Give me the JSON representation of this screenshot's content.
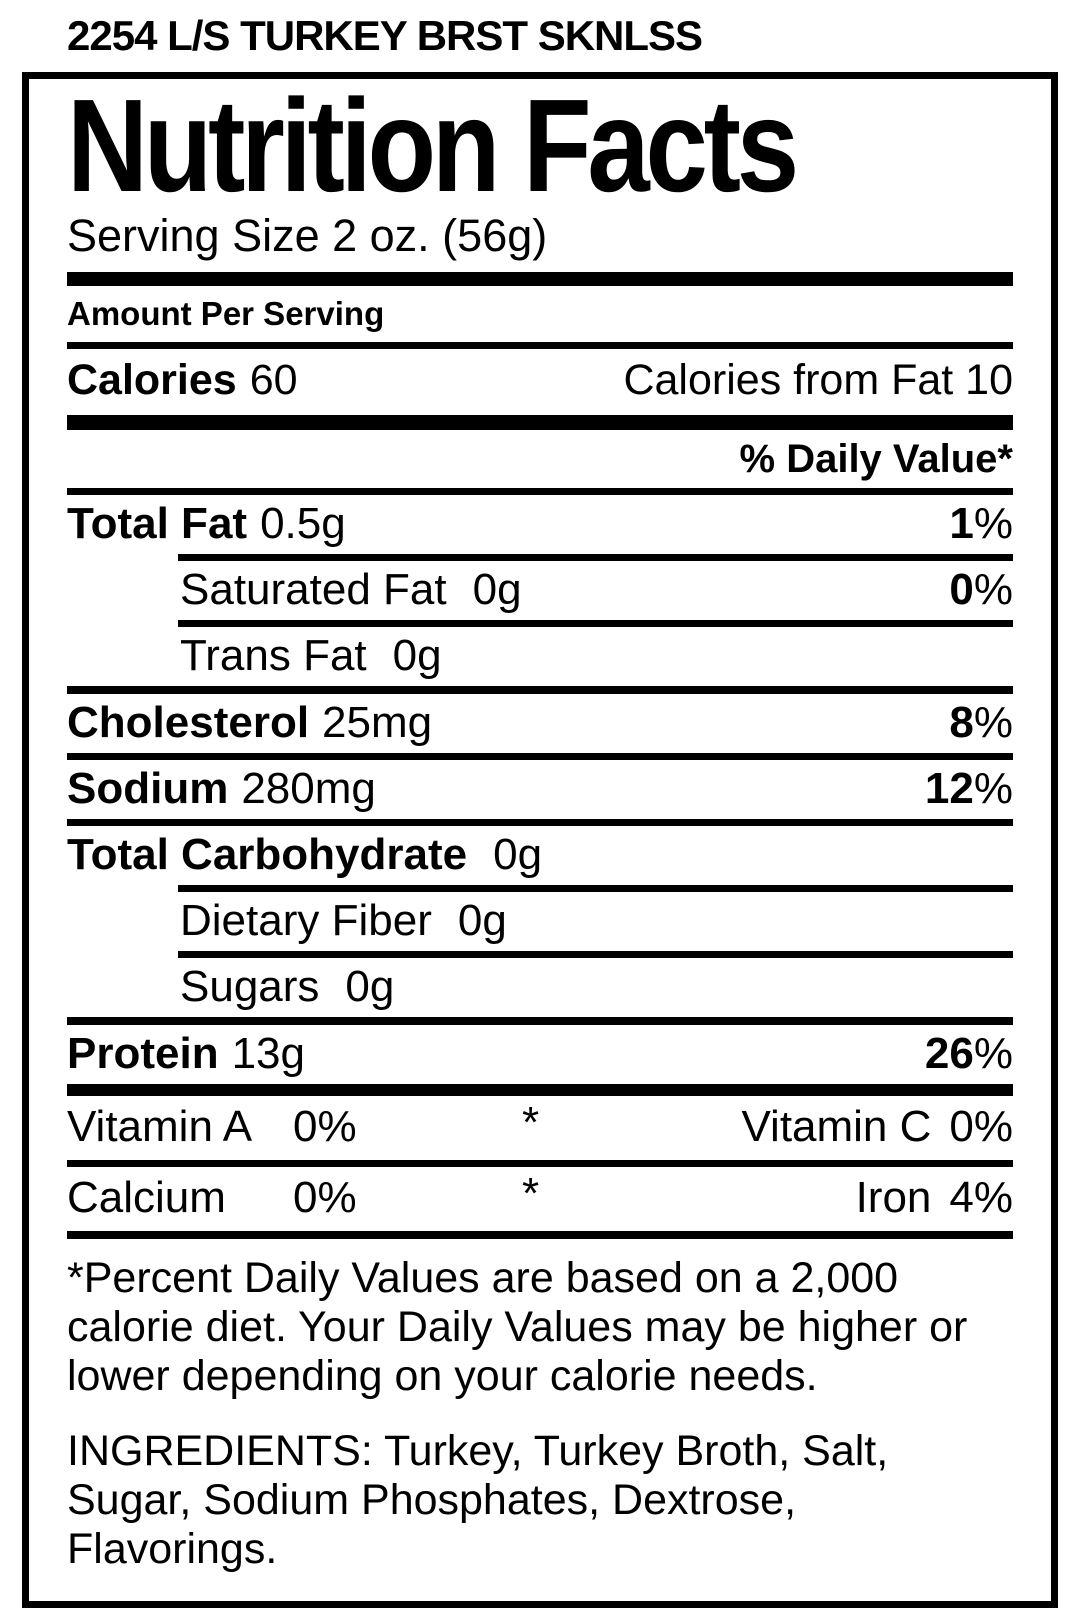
{
  "colors": {
    "ink": "#000000",
    "background": "#ffffff"
  },
  "symbols": {
    "percent": "%",
    "asterisk": "*"
  },
  "product_title": "2254 L/S TURKEY BRST SKNLSS",
  "label": {
    "title": "Nutrition Facts",
    "serving_size": "Serving Size 2 oz. (56g)",
    "amount_per_serving": "Amount Per Serving",
    "calories_label": "Calories",
    "calories_value": "60",
    "calories_from_fat": "Calories from Fat 10",
    "daily_value_header": "% Daily Value*",
    "rows": [
      {
        "label": "Total Fat",
        "value": "0.5g",
        "dv": "1"
      },
      {
        "label": "Saturated Fat",
        "value": "0g",
        "dv": "0"
      },
      {
        "label": "Trans Fat",
        "value": "0g"
      },
      {
        "label": "Cholesterol",
        "value": "25mg",
        "dv": "8"
      },
      {
        "label": "Sodium",
        "value": "280mg",
        "dv": "12"
      },
      {
        "label": "Total Carbohydrate",
        "value": "0g"
      },
      {
        "label": "Dietary Fiber",
        "value": "0g"
      },
      {
        "label": "Sugars",
        "value": "0g"
      },
      {
        "label": "Protein",
        "value": "13g",
        "dv": "26"
      }
    ],
    "vitamins": [
      {
        "left_label": "Vitamin A",
        "left_value": "0%",
        "right_label": "Vitamin C",
        "right_value": "0%"
      },
      {
        "left_label": "Calcium",
        "left_value": "0%",
        "right_label": "Iron",
        "right_value": "4%"
      }
    ],
    "footnote_lines": [
      "*Percent Daily Values are based on a 2,000",
      "calorie diet. Your Daily Values may be higher or",
      "lower depending on your calorie needs."
    ],
    "ingredients_lines": [
      "INGREDIENTS: Turkey, Turkey Broth, Salt,",
      "Sugar, Sodium Phosphates, Dextrose,",
      "Flavorings."
    ]
  }
}
